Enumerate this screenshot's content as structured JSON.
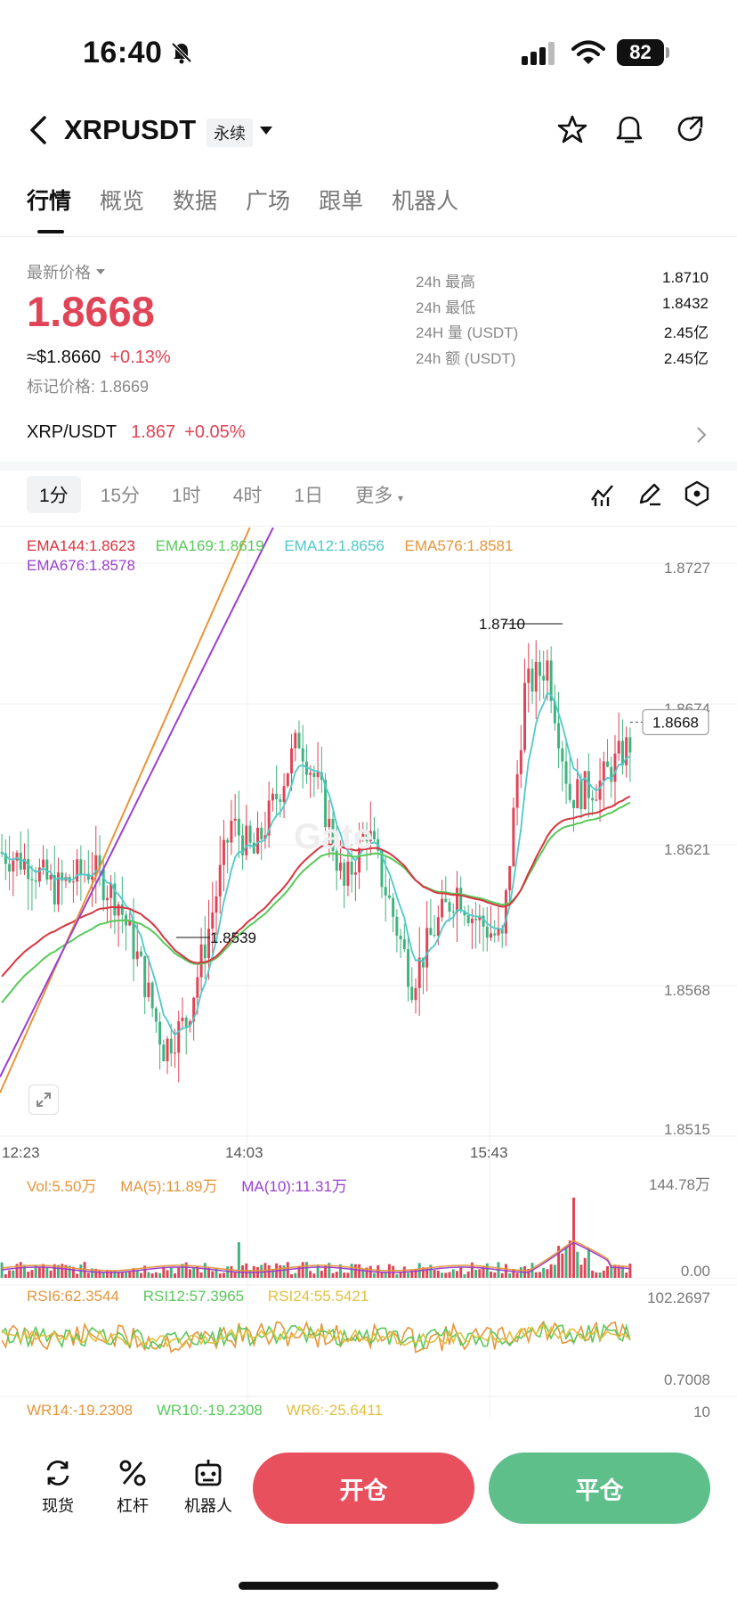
{
  "status": {
    "time": "16:40",
    "battery": "82"
  },
  "header": {
    "symbol": "XRPUSDT",
    "badge": "永续"
  },
  "tabs": [
    "行情",
    "概览",
    "数据",
    "广场",
    "跟单",
    "机器人"
  ],
  "price": {
    "label": "最新价格",
    "last": "1.8668",
    "usd": "≈$1.8660",
    "change": "+0.13%",
    "mark": "标记价格: 1.8669"
  },
  "stats": [
    {
      "k": "24h  最高",
      "v": "1.8710"
    },
    {
      "k": "24h  最低",
      "v": "1.8432"
    },
    {
      "k": "24H  量 (USDT)",
      "v": "2.45亿"
    },
    {
      "k": "24h  额 (USDT)",
      "v": "2.45亿"
    }
  ],
  "pair": {
    "name": "XRP/USDT",
    "price": "1.867",
    "change": "+0.05%"
  },
  "timeframes": [
    "1分",
    "15分",
    "1时",
    "4时",
    "1日",
    "更多"
  ],
  "ema_legend": [
    {
      "t": "EMA144:1.8623",
      "c": "#d8343f"
    },
    {
      "t": "EMA169:1.8619",
      "c": "#57c95a"
    },
    {
      "t": "EMA12:1.8656",
      "c": "#4fc9c9"
    },
    {
      "t": "EMA576:1.8581",
      "c": "#e6953a"
    },
    {
      "t": "EMA676:1.8578",
      "c": "#9a3fd0"
    }
  ],
  "chart": {
    "y_ticks": [
      "1.8727",
      "1.8674",
      "1.8621",
      "1.8568",
      "1.8515"
    ],
    "x_ticks": [
      "12:23",
      "14:03",
      "15:43"
    ],
    "high_label": "1.8710",
    "low_label": "1.8539",
    "current": "1.8668",
    "watermark": "Gate"
  },
  "vol_legend": [
    {
      "t": "Vol:5.50万",
      "c": "#e6953a"
    },
    {
      "t": "MA(5):11.89万",
      "c": "#e6953a"
    },
    {
      "t": "MA(10):11.31万",
      "c": "#9a3fd0"
    }
  ],
  "vol_ticks": [
    "144.78万",
    "0.00"
  ],
  "rsi_legend": [
    {
      "t": "RSI6:62.3544",
      "c": "#e6953a"
    },
    {
      "t": "RSI12:57.3965",
      "c": "#57c95a"
    },
    {
      "t": "RSI24:55.5421",
      "c": "#e0c040"
    }
  ],
  "rsi_ticks": [
    "102.2697",
    "0.7008"
  ],
  "wr_legend": [
    {
      "t": "WR14:-19.2308",
      "c": "#e6953a"
    },
    {
      "t": "WR10:-19.2308",
      "c": "#57c95a"
    },
    {
      "t": "WR6:-25.6411",
      "c": "#e0c040"
    }
  ],
  "wr_tick": "10",
  "bottom": {
    "spot": "现货",
    "lever": "杠杆",
    "bot": "机器人",
    "open": "开仓",
    "close": "平仓"
  },
  "colors": {
    "up": "#e04456",
    "down": "#3fb37f",
    "open_btn": "#e8505e",
    "close_btn": "#5fbf8a"
  }
}
